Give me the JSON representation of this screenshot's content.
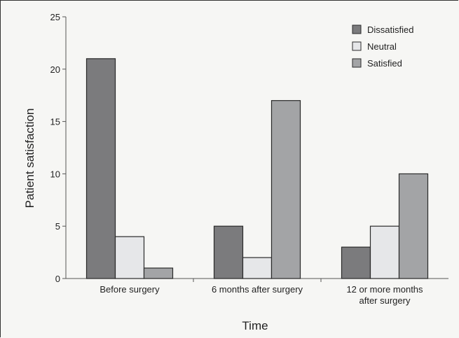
{
  "chart_data": {
    "type": "bar",
    "categories": [
      "Before surgery",
      "6 months after surgery",
      "12 or more months after surgery"
    ],
    "category_lines": [
      [
        "Before surgery"
      ],
      [
        "6 months after surgery"
      ],
      [
        "12 or more months",
        "after surgery"
      ]
    ],
    "series": [
      {
        "name": "Dissatisfied",
        "values": [
          21,
          5,
          3
        ],
        "color": "#7b7b7d"
      },
      {
        "name": "Neutral",
        "values": [
          4,
          2,
          5
        ],
        "color": "#e6e7e9"
      },
      {
        "name": "Satisfied",
        "values": [
          1,
          17,
          10
        ],
        "color": "#a3a4a6"
      }
    ],
    "xlabel": "Time",
    "ylabel": "Patient satisfaction",
    "ylim": [
      0,
      25
    ],
    "yticks": [
      0,
      5,
      10,
      15,
      20,
      25
    ],
    "grid": false,
    "legend_position": "top-right"
  }
}
